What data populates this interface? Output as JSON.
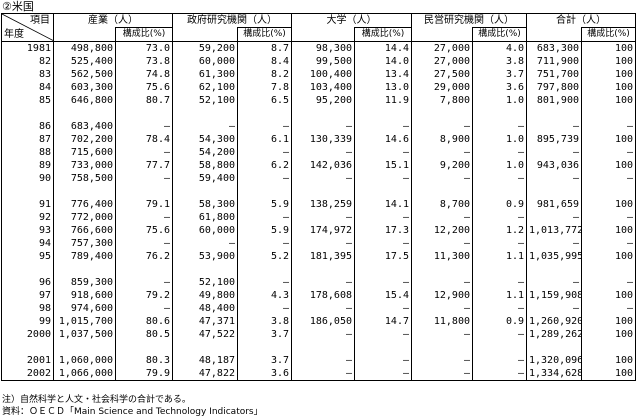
{
  "caption": "②米国",
  "header": {
    "item_label": "項目",
    "year_label": "年度",
    "groups": [
      "産業（人）",
      "政府研究機関（人）",
      "大学（人）",
      "民営研究機関（人）",
      "合計（人）"
    ],
    "ratio_label": "構成比(%)"
  },
  "rows": [
    {
      "year": "1981",
      "ind": "498,800",
      "ind_p": "73.0",
      "gov": "59,200",
      "gov_p": "8.7",
      "uni": "98,300",
      "uni_p": "14.4",
      "prv": "27,000",
      "prv_p": "4.0",
      "tot": "683,300",
      "tot_p": "100"
    },
    {
      "year": "82",
      "ind": "525,400",
      "ind_p": "73.8",
      "gov": "60,000",
      "gov_p": "8.4",
      "uni": "99,500",
      "uni_p": "14.0",
      "prv": "27,000",
      "prv_p": "3.8",
      "tot": "711,900",
      "tot_p": "100"
    },
    {
      "year": "83",
      "ind": "562,500",
      "ind_p": "74.8",
      "gov": "61,300",
      "gov_p": "8.2",
      "uni": "100,400",
      "uni_p": "13.4",
      "prv": "27,500",
      "prv_p": "3.7",
      "tot": "751,700",
      "tot_p": "100"
    },
    {
      "year": "84",
      "ind": "603,300",
      "ind_p": "75.6",
      "gov": "62,100",
      "gov_p": "7.8",
      "uni": "103,400",
      "uni_p": "13.0",
      "prv": "29,000",
      "prv_p": "3.6",
      "tot": "797,800",
      "tot_p": "100"
    },
    {
      "year": "85",
      "ind": "646,800",
      "ind_p": "80.7",
      "gov": "52,100",
      "gov_p": "6.5",
      "uni": "95,200",
      "uni_p": "11.9",
      "prv": "7,800",
      "prv_p": "1.0",
      "tot": "801,900",
      "tot_p": "100"
    },
    {
      "spacer": true
    },
    {
      "year": "86",
      "ind": "683,400",
      "ind_p": "–",
      "gov": "–",
      "gov_p": "–",
      "uni": "–",
      "uni_p": "–",
      "prv": "–",
      "prv_p": "–",
      "tot": "–",
      "tot_p": "–"
    },
    {
      "year": "87",
      "ind": "702,200",
      "ind_p": "78.4",
      "gov": "54,300",
      "gov_p": "6.1",
      "uni": "130,339",
      "uni_p": "14.6",
      "prv": "8,900",
      "prv_p": "1.0",
      "tot": "895,739",
      "tot_p": "100"
    },
    {
      "year": "88",
      "ind": "715,600",
      "ind_p": "–",
      "gov": "54,200",
      "gov_p": "–",
      "uni": "–",
      "uni_p": "–",
      "prv": "–",
      "prv_p": "–",
      "tot": "–",
      "tot_p": "–"
    },
    {
      "year": "89",
      "ind": "733,000",
      "ind_p": "77.7",
      "gov": "58,800",
      "gov_p": "6.2",
      "uni": "142,036",
      "uni_p": "15.1",
      "prv": "9,200",
      "prv_p": "1.0",
      "tot": "943,036",
      "tot_p": "100"
    },
    {
      "year": "90",
      "ind": "758,500",
      "ind_p": "–",
      "gov": "59,400",
      "gov_p": "–",
      "uni": "–",
      "uni_p": "–",
      "prv": "–",
      "prv_p": "–",
      "tot": "–",
      "tot_p": "–"
    },
    {
      "spacer": true
    },
    {
      "year": "91",
      "ind": "776,400",
      "ind_p": "79.1",
      "gov": "58,300",
      "gov_p": "5.9",
      "uni": "138,259",
      "uni_p": "14.1",
      "prv": "8,700",
      "prv_p": "0.9",
      "tot": "981,659",
      "tot_p": "100"
    },
    {
      "year": "92",
      "ind": "772,000",
      "ind_p": "–",
      "gov": "61,800",
      "gov_p": "–",
      "uni": "–",
      "uni_p": "–",
      "prv": "–",
      "prv_p": "–",
      "tot": "–",
      "tot_p": "–"
    },
    {
      "year": "93",
      "ind": "766,600",
      "ind_p": "75.6",
      "gov": "60,000",
      "gov_p": "5.9",
      "uni": "174,972",
      "uni_p": "17.3",
      "prv": "12,200",
      "prv_p": "1.2",
      "tot": "1,013,772",
      "tot_p": "100"
    },
    {
      "year": "94",
      "ind": "757,300",
      "ind_p": "–",
      "gov": "–",
      "gov_p": "–",
      "uni": "–",
      "uni_p": "–",
      "prv": "–",
      "prv_p": "–",
      "tot": "–",
      "tot_p": "–"
    },
    {
      "year": "95",
      "ind": "789,400",
      "ind_p": "76.2",
      "gov": "53,900",
      "gov_p": "5.2",
      "uni": "181,395",
      "uni_p": "17.5",
      "prv": "11,300",
      "prv_p": "1.1",
      "tot": "1,035,995",
      "tot_p": "100"
    },
    {
      "spacer": true
    },
    {
      "year": "96",
      "ind": "859,300",
      "ind_p": "–",
      "gov": "52,100",
      "gov_p": "–",
      "uni": "–",
      "uni_p": "–",
      "prv": "–",
      "prv_p": "–",
      "tot": "–",
      "tot_p": "–"
    },
    {
      "year": "97",
      "ind": "918,600",
      "ind_p": "79.2",
      "gov": "49,800",
      "gov_p": "4.3",
      "uni": "178,608",
      "uni_p": "15.4",
      "prv": "12,900",
      "prv_p": "1.1",
      "tot": "1,159,908",
      "tot_p": "100"
    },
    {
      "year": "98",
      "ind": "974,600",
      "ind_p": "–",
      "gov": "48,400",
      "gov_p": "–",
      "uni": "–",
      "uni_p": "–",
      "prv": "–",
      "prv_p": "–",
      "tot": "–",
      "tot_p": "–"
    },
    {
      "year": "99",
      "ind": "1,015,700",
      "ind_p": "80.6",
      "gov": "47,371",
      "gov_p": "3.8",
      "uni": "186,050",
      "uni_p": "14.7",
      "prv": "11,800",
      "prv_p": "0.9",
      "tot": "1,260,920",
      "tot_p": "100"
    },
    {
      "year": "2000",
      "ind": "1,037,500",
      "ind_p": "80.5",
      "gov": "47,522",
      "gov_p": "3.7",
      "uni": "–",
      "uni_p": "–",
      "prv": "–",
      "prv_p": "–",
      "tot": "1,289,262",
      "tot_p": "100"
    },
    {
      "spacer": true
    },
    {
      "year": "2001",
      "ind": "1,060,000",
      "ind_p": "80.3",
      "gov": "48,187",
      "gov_p": "3.7",
      "uni": "–",
      "uni_p": "–",
      "prv": "–",
      "prv_p": "–",
      "tot": "1,320,096",
      "tot_p": "100"
    },
    {
      "year": "2002",
      "ind": "1,066,000",
      "ind_p": "79.9",
      "gov": "47,822",
      "gov_p": "3.6",
      "uni": "–",
      "uni_p": "–",
      "prv": "–",
      "prv_p": "–",
      "tot": "1,334,628",
      "tot_p": "100"
    }
  ],
  "notes": [
    "注）自然科学と人文・社会科学の合計である。",
    "資料：ＯＥＣＤ「Main Science and Technology Indicators」"
  ]
}
